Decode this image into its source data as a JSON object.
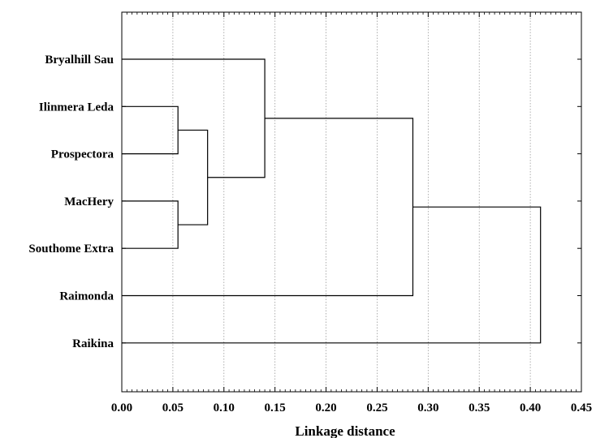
{
  "chart_data": {
    "type": "dendrogram",
    "orientation": "horizontal",
    "xlabel": "Linkage distance",
    "xlim": [
      0,
      0.45
    ],
    "xticks": [
      "0.00",
      "0.05",
      "0.10",
      "0.15",
      "0.20",
      "0.25",
      "0.30",
      "0.35",
      "0.40",
      "0.45"
    ],
    "grid": "vertical dotted",
    "leaves": [
      "Bryalhill Sau",
      "Ilinmera Leda",
      "Prospectora",
      "MacHery",
      "Southome Extra",
      "Raimonda",
      "Raikina"
    ],
    "merges": [
      {
        "a": "Ilinmera Leda",
        "b": "Prospectora",
        "distance": 0.055
      },
      {
        "a": "MacHery",
        "b": "Southome Extra",
        "distance": 0.055
      },
      {
        "a": "Ilinmera Leda + Prospectora",
        "b": "MacHery + Southome Extra",
        "distance": 0.084
      },
      {
        "a": "Bryalhill Sau",
        "b": "Ilinmera Leda + Prospectora + MacHery + Southome Extra",
        "distance": 0.14
      },
      {
        "a": "Bryalhill Sau + Ilinmera Leda + Prospectora + MacHery + Southome Extra",
        "b": "Raimonda",
        "distance": 0.285
      },
      {
        "a": "all others",
        "b": "Raikina",
        "distance": 0.41
      }
    ]
  }
}
